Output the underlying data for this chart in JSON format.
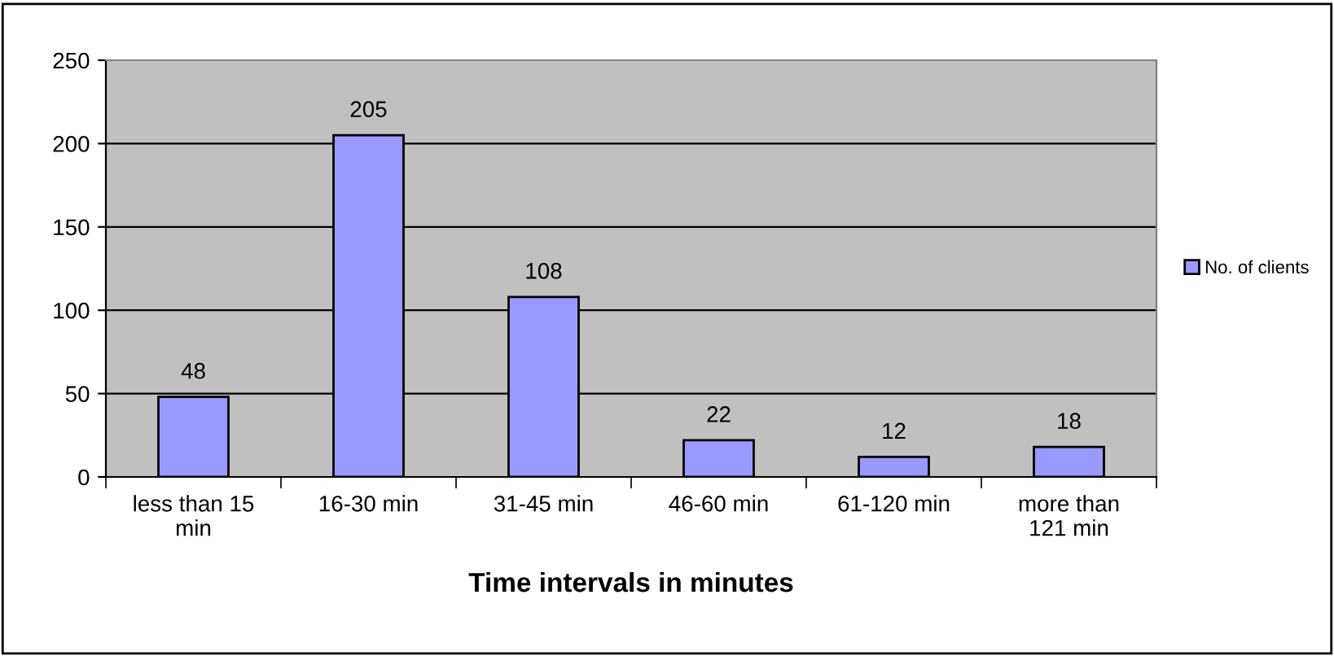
{
  "chart_data": {
    "type": "bar",
    "xlabel": "Time intervals in minutes",
    "categories": [
      "less than 15\nmin",
      "16-30 min",
      "31-45 min",
      "46-60 min",
      "61-120 min",
      "more than\n121 min"
    ],
    "series": [
      {
        "name": "No. of clients",
        "color": "#9999ff",
        "values": [
          48,
          205,
          108,
          22,
          12,
          18
        ]
      }
    ],
    "ylim": [
      0,
      250
    ],
    "yticks": [
      0,
      50,
      100,
      150,
      200,
      250
    ],
    "grid": "y",
    "legend": "right",
    "data_labels": true
  }
}
